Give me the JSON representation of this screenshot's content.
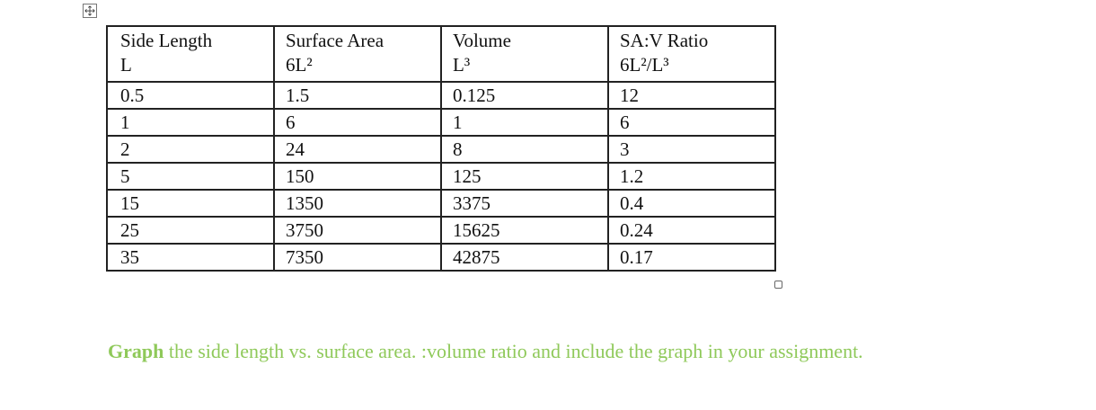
{
  "table": {
    "headers": [
      [
        "Side Length",
        "L"
      ],
      [
        "Surface Area",
        "6L²"
      ],
      [
        "Volume",
        "L³"
      ],
      [
        "SA:V Ratio",
        "6L²/L³"
      ]
    ],
    "rows": [
      [
        0.5,
        1.5,
        0.125,
        12
      ],
      [
        1,
        6,
        1,
        6
      ],
      [
        2,
        24,
        8,
        3
      ],
      [
        5,
        150,
        125,
        1.2
      ],
      [
        15,
        1350,
        3375,
        0.4
      ],
      [
        25,
        3750,
        15625,
        0.24
      ],
      [
        35,
        7350,
        42875,
        0.17
      ]
    ]
  },
  "instruction": {
    "bold": "Graph",
    "text": " the side length vs. surface area. :volume ratio and include the graph in your assignment."
  }
}
